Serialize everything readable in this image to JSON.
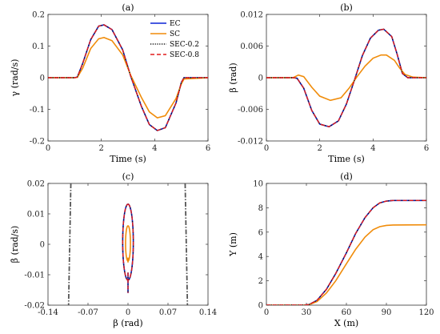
{
  "chart_data": [
    {
      "id": "a",
      "type": "line",
      "title": "(a)",
      "xlabel": "Time (s)",
      "ylabel": "γ (rad/s)",
      "xlim": [
        0,
        6
      ],
      "ylim": [
        -0.2,
        0.2
      ],
      "xticks": [
        "0",
        "2",
        "4",
        "6"
      ],
      "yticks": [
        "-0.2",
        "-0.1",
        "0",
        "0.1",
        "0.2"
      ],
      "legend_position": "top-right",
      "series": [
        {
          "name": "EC",
          "color": "#0b24d6",
          "style": "solid",
          "x": [
            0,
            1.0,
            1.1,
            1.3,
            1.6,
            1.9,
            2.1,
            2.4,
            2.8,
            3.1,
            3.5,
            3.8,
            4.1,
            4.4,
            4.8,
            5.0,
            5.1,
            6
          ],
          "y": [
            0,
            0,
            0.002,
            0.045,
            0.12,
            0.163,
            0.167,
            0.152,
            0.088,
            0.005,
            -0.09,
            -0.148,
            -0.167,
            -0.158,
            -0.08,
            -0.015,
            0,
            0
          ]
        },
        {
          "name": "SC",
          "color": "#f08c0a",
          "style": "solid",
          "x": [
            0,
            1.0,
            1.1,
            1.3,
            1.6,
            1.9,
            2.1,
            2.4,
            2.8,
            3.1,
            3.5,
            3.8,
            4.1,
            4.4,
            4.8,
            5.0,
            5.1,
            6
          ],
          "y": [
            0,
            0,
            0.001,
            0.03,
            0.092,
            0.123,
            0.127,
            0.117,
            0.072,
            0.008,
            -0.062,
            -0.108,
            -0.127,
            -0.12,
            -0.066,
            -0.02,
            -0.004,
            0
          ]
        },
        {
          "name": "SEC-0.2",
          "color": "#111111",
          "style": "dotted",
          "x": [
            0,
            1.0,
            1.1,
            1.3,
            1.6,
            1.9,
            2.1,
            2.4,
            2.8,
            3.1,
            3.5,
            3.8,
            4.1,
            4.4,
            4.8,
            5.0,
            5.1,
            6
          ],
          "y": [
            0,
            0,
            0.002,
            0.045,
            0.12,
            0.163,
            0.167,
            0.152,
            0.088,
            0.005,
            -0.09,
            -0.148,
            -0.167,
            -0.158,
            -0.08,
            -0.015,
            0,
            0
          ]
        },
        {
          "name": "SEC-0.8",
          "color": "#e01b1b",
          "style": "dashed",
          "x": [
            0,
            1.0,
            1.1,
            1.3,
            1.6,
            1.9,
            2.1,
            2.4,
            2.8,
            3.1,
            3.5,
            3.8,
            4.1,
            4.4,
            4.8,
            5.0,
            5.1,
            6
          ],
          "y": [
            0,
            0,
            0.002,
            0.045,
            0.12,
            0.163,
            0.167,
            0.152,
            0.088,
            0.005,
            -0.09,
            -0.148,
            -0.167,
            -0.158,
            -0.08,
            -0.015,
            0,
            0
          ]
        }
      ]
    },
    {
      "id": "b",
      "type": "line",
      "title": "(b)",
      "xlabel": "Time (s)",
      "ylabel": "β (rad)",
      "xlim": [
        0,
        6
      ],
      "ylim": [
        -0.012,
        0.012
      ],
      "xticks": [
        "0",
        "2",
        "4",
        "6"
      ],
      "yticks": [
        "-0.012",
        "-0.006",
        "0",
        "0.006",
        "0.012"
      ],
      "series": [
        {
          "name": "EC",
          "color": "#0b24d6",
          "style": "solid",
          "x": [
            0,
            1.0,
            1.15,
            1.4,
            1.7,
            2.0,
            2.35,
            2.7,
            3.0,
            3.3,
            3.6,
            3.9,
            4.2,
            4.4,
            4.7,
            4.9,
            5.1,
            5.3,
            6
          ],
          "y": [
            0,
            0,
            -0.0001,
            -0.002,
            -0.0062,
            -0.0088,
            -0.0093,
            -0.0082,
            -0.005,
            -0.0005,
            0.0042,
            0.0075,
            0.009,
            0.0092,
            0.0078,
            0.0045,
            0.0008,
            0,
            0
          ]
        },
        {
          "name": "SC",
          "color": "#f08c0a",
          "style": "solid",
          "x": [
            0,
            1.0,
            1.2,
            1.4,
            1.7,
            2.0,
            2.4,
            2.8,
            3.1,
            3.4,
            3.7,
            4.0,
            4.3,
            4.5,
            4.8,
            5.0,
            5.2,
            5.5,
            6
          ],
          "y": [
            0,
            0,
            0.0005,
            0.0002,
            -0.0018,
            -0.0035,
            -0.0043,
            -0.0038,
            -0.002,
            0.0002,
            0.0022,
            0.0037,
            0.0043,
            0.0043,
            0.0033,
            0.0018,
            0.0006,
            0.0001,
            0
          ]
        },
        {
          "name": "SEC-0.2",
          "color": "#111111",
          "style": "dotted",
          "x": [
            0,
            1.0,
            1.15,
            1.4,
            1.7,
            2.0,
            2.35,
            2.7,
            3.0,
            3.3,
            3.6,
            3.9,
            4.2,
            4.4,
            4.7,
            4.9,
            5.1,
            5.3,
            6
          ],
          "y": [
            0,
            0,
            -0.0001,
            -0.002,
            -0.0062,
            -0.0088,
            -0.0093,
            -0.0082,
            -0.005,
            -0.0005,
            0.0042,
            0.0075,
            0.009,
            0.0092,
            0.0078,
            0.0045,
            0.0008,
            0,
            0
          ]
        },
        {
          "name": "SEC-0.8",
          "color": "#e01b1b",
          "style": "dashed",
          "x": [
            0,
            1.0,
            1.15,
            1.4,
            1.7,
            2.0,
            2.35,
            2.7,
            3.0,
            3.3,
            3.6,
            3.9,
            4.2,
            4.4,
            4.7,
            4.9,
            5.1,
            5.3,
            6
          ],
          "y": [
            0,
            0,
            -0.0001,
            -0.002,
            -0.0062,
            -0.0088,
            -0.0093,
            -0.0082,
            -0.005,
            -0.0005,
            0.0042,
            0.0075,
            0.009,
            0.0092,
            0.0078,
            0.0045,
            0.0008,
            0,
            0
          ]
        }
      ]
    },
    {
      "id": "c",
      "type": "line",
      "title": "(c)",
      "xlabel": "β (rad)",
      "ylabel": "β̇ (rad/s)",
      "xlim": [
        -0.14,
        0.14
      ],
      "ylim": [
        -0.02,
        0.02
      ],
      "xticks": [
        "-0.14",
        "-0.07",
        "0",
        "0.07",
        "0.14"
      ],
      "yticks": [
        "-0.02",
        "-0.01",
        "0",
        "0.01",
        "0.02"
      ],
      "boundary_lines": [
        {
          "color": "#555555",
          "style": "dashdot",
          "x": [
            -0.1,
            -0.104
          ],
          "y": [
            0.02,
            -0.02
          ]
        },
        {
          "color": "#555555",
          "style": "dashdot",
          "x": [
            0.1,
            0.104
          ],
          "y": [
            0.02,
            -0.02
          ]
        }
      ],
      "series": [
        {
          "name": "EC",
          "color": "#0b24d6",
          "style": "solid",
          "cx": 0,
          "cy": 0.0007,
          "rx": 0.0093,
          "ry": 0.0125,
          "tail_y": -0.016
        },
        {
          "name": "SC",
          "color": "#f08c0a",
          "style": "solid",
          "cx": 0,
          "cy": 0.0003,
          "rx": 0.0043,
          "ry": 0.0058,
          "tail_y": -0.006
        },
        {
          "name": "SEC-0.2",
          "color": "#111111",
          "style": "dotted",
          "cx": 0,
          "cy": 0.0007,
          "rx": 0.0093,
          "ry": 0.0125,
          "tail_y": -0.016
        },
        {
          "name": "SEC-0.8",
          "color": "#e01b1b",
          "style": "dashed",
          "cx": 0,
          "cy": 0.0007,
          "rx": 0.0093,
          "ry": 0.0125,
          "tail_y": -0.016
        }
      ]
    },
    {
      "id": "d",
      "type": "line",
      "title": "(d)",
      "xlabel": "X (m)",
      "ylabel": "Y (m)",
      "xlim": [
        0,
        120
      ],
      "ylim": [
        0,
        10
      ],
      "xticks": [
        "0",
        "30",
        "60",
        "90",
        "120"
      ],
      "yticks": [
        "0",
        "2",
        "4",
        "6",
        "8",
        "10"
      ],
      "series": [
        {
          "name": "EC",
          "color": "#0b24d6",
          "style": "solid",
          "x": [
            0,
            28,
            32,
            38,
            45,
            52,
            60,
            67,
            74,
            80,
            85,
            90,
            95,
            120
          ],
          "y": [
            0,
            0,
            0.05,
            0.4,
            1.3,
            2.6,
            4.3,
            5.9,
            7.2,
            8.0,
            8.4,
            8.55,
            8.6,
            8.6
          ]
        },
        {
          "name": "SC",
          "color": "#f08c0a",
          "style": "solid",
          "x": [
            0,
            28,
            32,
            38,
            45,
            52,
            60,
            67,
            74,
            80,
            85,
            90,
            95,
            120
          ],
          "y": [
            0,
            0,
            0.04,
            0.3,
            1.0,
            2.0,
            3.4,
            4.6,
            5.6,
            6.2,
            6.45,
            6.55,
            6.58,
            6.6
          ]
        },
        {
          "name": "SEC-0.2",
          "color": "#111111",
          "style": "dotted",
          "x": [
            0,
            28,
            32,
            38,
            45,
            52,
            60,
            67,
            74,
            80,
            85,
            90,
            95,
            120
          ],
          "y": [
            0,
            0,
            0.05,
            0.4,
            1.3,
            2.6,
            4.3,
            5.9,
            7.2,
            8.0,
            8.4,
            8.55,
            8.6,
            8.6
          ]
        },
        {
          "name": "SEC-0.8",
          "color": "#e01b1b",
          "style": "dashed",
          "x": [
            0,
            28,
            32,
            38,
            45,
            52,
            60,
            67,
            74,
            80,
            85,
            90,
            95,
            120
          ],
          "y": [
            0,
            0,
            0.05,
            0.4,
            1.3,
            2.6,
            4.3,
            5.9,
            7.2,
            8.0,
            8.4,
            8.55,
            8.6,
            8.6
          ]
        }
      ]
    }
  ]
}
